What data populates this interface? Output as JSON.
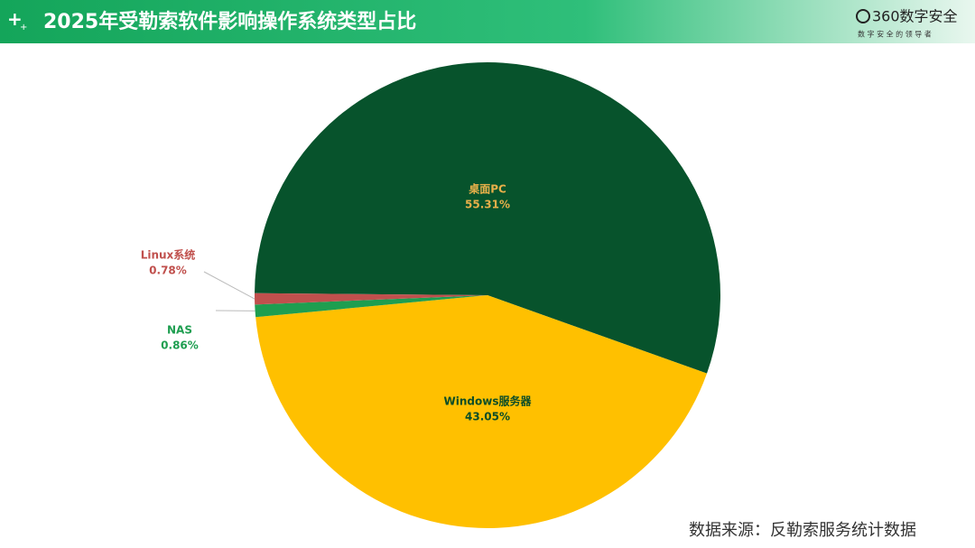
{
  "header": {
    "title": "2025年受勒索软件影响操作系统类型占比",
    "logo": "360数字安全",
    "slogan": "数 字 安 全 的 领 导 者"
  },
  "chart_data": {
    "type": "pie",
    "categories": [
      "桌面PC",
      "Windows服务器",
      "NAS",
      "Linux系统"
    ],
    "values": [
      55.31,
      43.05,
      0.86,
      0.78
    ],
    "value_labels": [
      "55.31%",
      "43.05%",
      "0.86%",
      "0.78%"
    ],
    "colors": [
      "#07532c",
      "#ffc000",
      "#1e9e50",
      "#c0504d"
    ]
  },
  "footer": {
    "source": "数据来源：反勒索服务统计数据"
  }
}
